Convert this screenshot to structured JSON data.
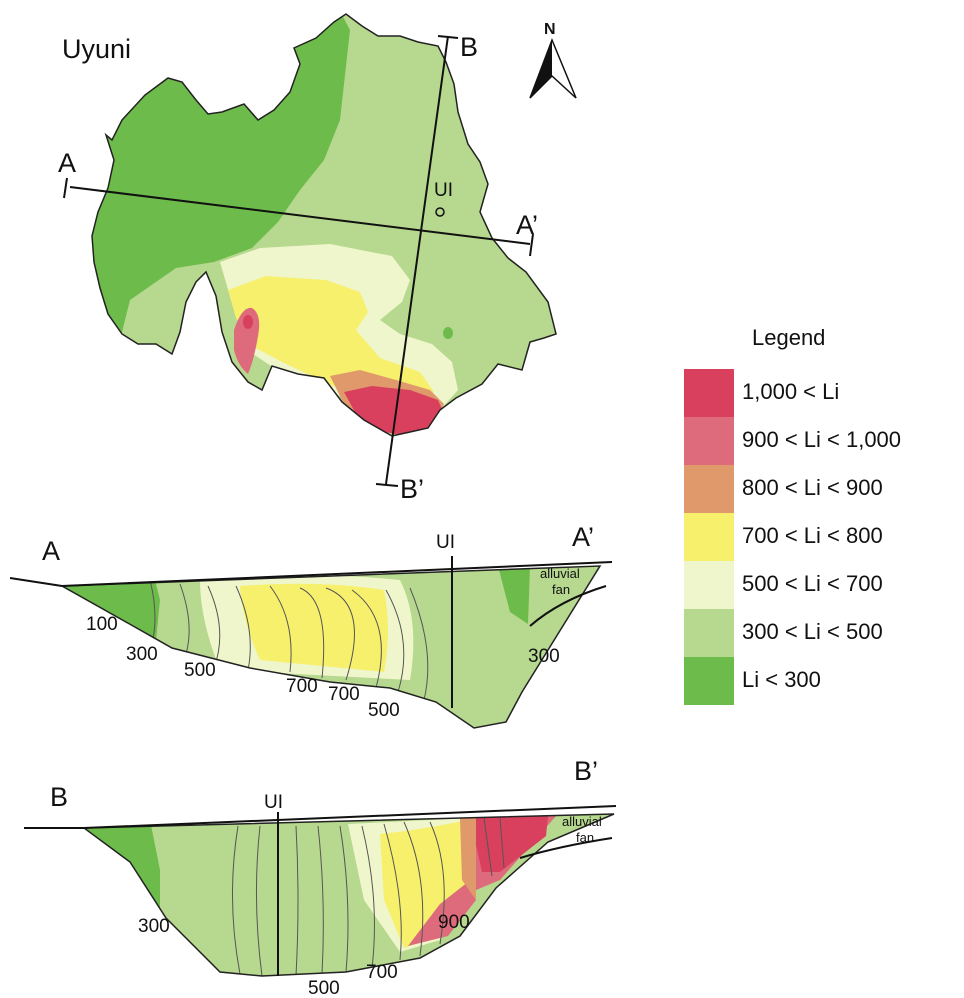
{
  "map": {
    "title": "Uyuni",
    "north": "N",
    "well_label": "UI",
    "section_endpoints": {
      "a": "A",
      "a_prime": "A’",
      "b": "B",
      "b_prime": "B’"
    }
  },
  "section_ab": {
    "left_label": "A",
    "right_label": "A’",
    "well_label": "UI",
    "fan_label": [
      "alluvial",
      "fan"
    ],
    "contour_labels": [
      "100",
      "300",
      "500",
      "700",
      "700",
      "500",
      "300"
    ]
  },
  "section_bb": {
    "left_label": "B",
    "right_label": "B’",
    "well_label": "UI",
    "fan_label": [
      "alluvial",
      "fan"
    ],
    "contour_labels": [
      "300",
      "500",
      "700",
      "900"
    ]
  },
  "legend": {
    "title": "Legend",
    "items": [
      {
        "label": "1,000 < Li",
        "color": "#d8405e"
      },
      {
        "label": "900 < Li < 1,000",
        "color": "#de6b7b"
      },
      {
        "label": "800 < Li < 900",
        "color": "#e0996a"
      },
      {
        "label": "700 < Li < 800",
        "color": "#f6f06c"
      },
      {
        "label": "500 < Li < 700",
        "color": "#f0f6cc"
      },
      {
        "label": "300 < Li < 500",
        "color": "#b6d88f"
      },
      {
        "label": "Li < 300",
        "color": "#6dbb4a"
      }
    ]
  }
}
